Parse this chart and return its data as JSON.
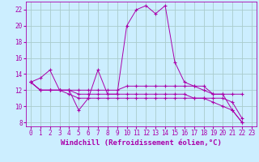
{
  "background_color": "#cceeff",
  "grid_color": "#aacccc",
  "line_color": "#aa00aa",
  "xlabel": "Windchill (Refroidissement éolien,°C)",
  "xlabel_fontsize": 6.5,
  "xtick_fontsize": 5.5,
  "ytick_fontsize": 5.5,
  "xlim": [
    -0.5,
    23.5
  ],
  "ylim": [
    7.5,
    23.0
  ],
  "yticks": [
    8,
    10,
    12,
    14,
    16,
    18,
    20,
    22
  ],
  "xticks": [
    0,
    1,
    2,
    3,
    4,
    5,
    6,
    7,
    8,
    9,
    10,
    11,
    12,
    13,
    14,
    15,
    16,
    17,
    18,
    19,
    20,
    21,
    22,
    23
  ],
  "series": [
    [
      13.0,
      13.5,
      14.5,
      12.0,
      12.0,
      9.5,
      11.0,
      14.5,
      11.5,
      11.5,
      20.0,
      22.0,
      22.5,
      21.5,
      22.5,
      15.5,
      13.0,
      12.5,
      12.5,
      11.5,
      11.5,
      9.5,
      8.0
    ],
    [
      13.0,
      12.0,
      12.0,
      12.0,
      12.0,
      12.0,
      12.0,
      12.0,
      12.0,
      12.0,
      12.5,
      12.5,
      12.5,
      12.5,
      12.5,
      12.5,
      12.5,
      12.5,
      12.0,
      11.5,
      11.5,
      11.5,
      11.5
    ],
    [
      13.0,
      12.0,
      12.0,
      12.0,
      12.0,
      11.5,
      11.5,
      11.5,
      11.5,
      11.5,
      11.5,
      11.5,
      11.5,
      11.5,
      11.5,
      11.5,
      11.5,
      11.0,
      11.0,
      11.0,
      11.0,
      10.5,
      8.5
    ],
    [
      13.0,
      12.0,
      12.0,
      12.0,
      11.5,
      11.0,
      11.0,
      11.0,
      11.0,
      11.0,
      11.0,
      11.0,
      11.0,
      11.0,
      11.0,
      11.0,
      11.0,
      11.0,
      11.0,
      10.5,
      10.0,
      9.5,
      8.0
    ]
  ]
}
